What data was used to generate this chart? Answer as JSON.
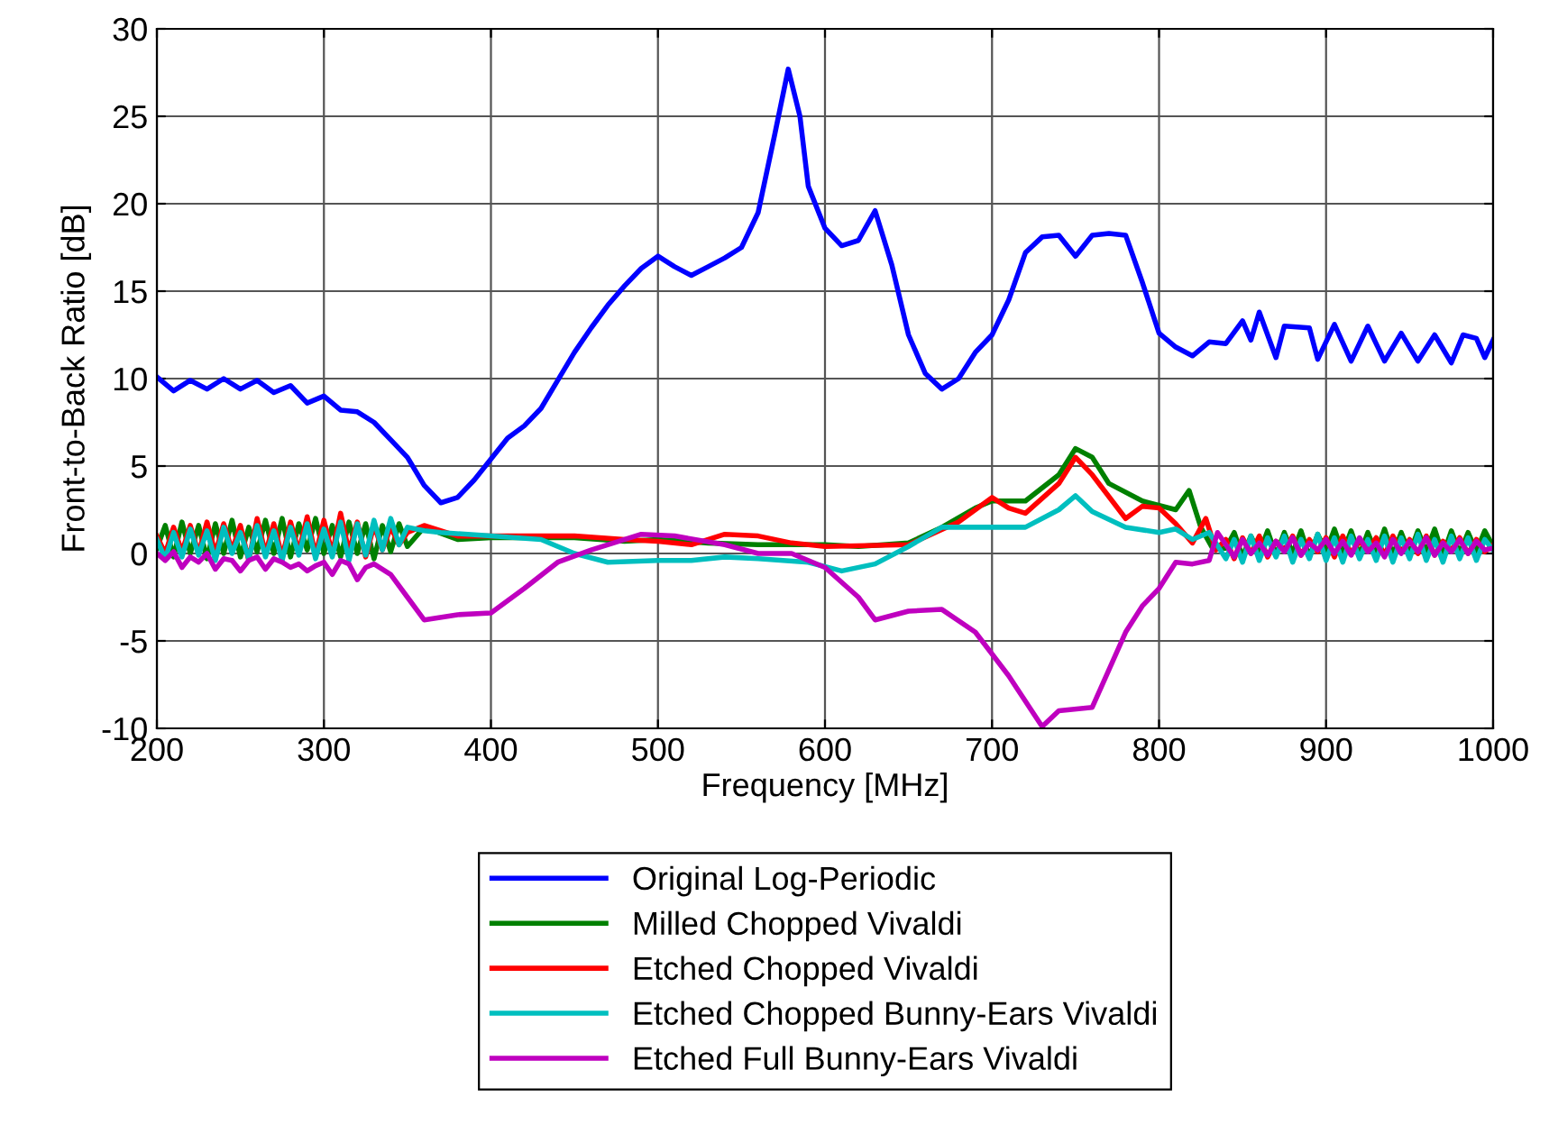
{
  "chart_data": {
    "type": "line",
    "xlabel": "Frequency [MHz]",
    "ylabel": "Front-to-Back Ratio [dB]",
    "xlim": [
      200,
      1000
    ],
    "ylim": [
      -10,
      30
    ],
    "xticks": [
      200,
      300,
      400,
      500,
      600,
      700,
      800,
      900,
      1000
    ],
    "yticks": [
      -10,
      -5,
      0,
      5,
      10,
      15,
      20,
      25,
      30
    ],
    "grid": true,
    "legend": "bottom",
    "line_style": "solid",
    "marker": "none",
    "series": [
      {
        "name": "Original Log-Periodic",
        "color": "#0000ff",
        "x": [
          200,
          210,
          220,
          230,
          240,
          250,
          260,
          270,
          280,
          290,
          300,
          310,
          320,
          330,
          340,
          350,
          360,
          370,
          380,
          390,
          400,
          410,
          420,
          430,
          440,
          450,
          460,
          470,
          480,
          490,
          500,
          510,
          520,
          530,
          540,
          550,
          560,
          570,
          578,
          585,
          590,
          600,
          610,
          620,
          630,
          640,
          650,
          660,
          670,
          680,
          690,
          700,
          710,
          720,
          730,
          740,
          750,
          760,
          770,
          780,
          790,
          800,
          810,
          820,
          830,
          840,
          850,
          855,
          860,
          870,
          875,
          890,
          895,
          905,
          915,
          925,
          935,
          945,
          955,
          965,
          975,
          982,
          990,
          995,
          1000
        ],
        "values": [
          10.1,
          9.3,
          9.9,
          9.4,
          10.0,
          9.4,
          9.9,
          9.2,
          9.6,
          8.6,
          9.0,
          8.2,
          8.1,
          7.5,
          6.5,
          5.5,
          3.9,
          2.9,
          3.2,
          4.2,
          5.4,
          6.6,
          7.3,
          8.3,
          9.9,
          11.5,
          12.9,
          14.2,
          15.3,
          16.3,
          17.0,
          16.4,
          15.9,
          16.4,
          16.9,
          17.5,
          19.5,
          24.0,
          27.7,
          25.0,
          21.0,
          18.6,
          17.6,
          17.9,
          19.6,
          16.5,
          12.5,
          10.3,
          9.4,
          10.0,
          11.5,
          12.5,
          14.5,
          17.2,
          18.1,
          18.2,
          17.0,
          18.2,
          18.3,
          18.2,
          15.5,
          12.6,
          11.8,
          11.3,
          12.1,
          12.0,
          13.3,
          12.2,
          13.8,
          11.2,
          13.0,
          12.9,
          11.1,
          13.1,
          11.0,
          13.0,
          11.0,
          12.6,
          11.0,
          12.5,
          10.9,
          12.5,
          12.3,
          11.2,
          12.2
        ]
      },
      {
        "name": "Milled Chopped Vivaldi",
        "color": "#008000",
        "x": [
          200,
          205,
          210,
          215,
          220,
          225,
          230,
          235,
          240,
          245,
          250,
          255,
          260,
          265,
          270,
          275,
          280,
          285,
          290,
          295,
          300,
          305,
          310,
          315,
          320,
          325,
          330,
          335,
          340,
          345,
          350,
          360,
          380,
          400,
          450,
          480,
          500,
          530,
          560,
          600,
          620,
          650,
          670,
          690,
          700,
          720,
          740,
          750,
          760,
          770,
          790,
          810,
          818,
          825,
          832,
          840,
          845,
          850,
          855,
          860,
          865,
          870,
          875,
          880,
          885,
          890,
          895,
          900,
          905,
          910,
          915,
          920,
          925,
          930,
          935,
          940,
          945,
          950,
          955,
          960,
          965,
          970,
          975,
          980,
          985,
          990,
          995,
          1000
        ],
        "values": [
          0.3,
          1.6,
          -0.2,
          1.8,
          0,
          1.6,
          -0.3,
          1.7,
          0,
          1.9,
          -0.2,
          1.5,
          0.1,
          1.9,
          0,
          2.0,
          -0.2,
          1.7,
          0.2,
          2.0,
          0,
          1.6,
          -0.2,
          1.8,
          0,
          1.7,
          -0.3,
          1.6,
          0.1,
          1.7,
          0.4,
          1.5,
          0.8,
          0.9,
          0.9,
          0.7,
          0.8,
          0.6,
          0.5,
          0.5,
          0.4,
          0.6,
          1.5,
          2.6,
          3.0,
          3.0,
          4.5,
          6.0,
          5.5,
          4.0,
          3.0,
          2.5,
          3.6,
          1.5,
          0.3,
          0.3,
          1.2,
          -0.2,
          1.0,
          0,
          1.3,
          -0.1,
          1.2,
          0,
          1.3,
          -0.2,
          1.1,
          0.1,
          1.4,
          0,
          1.3,
          -0.1,
          1.2,
          0,
          1.4,
          -0.1,
          1.2,
          0,
          1.3,
          0.1,
          1.4,
          -0.1,
          1.3,
          0,
          1.2,
          0.1,
          1.3,
          0.4
        ]
      },
      {
        "name": "Etched Chopped Vivaldi",
        "color": "#ff0000",
        "x": [
          200,
          205,
          210,
          215,
          220,
          225,
          230,
          235,
          240,
          245,
          250,
          255,
          260,
          265,
          270,
          275,
          280,
          285,
          290,
          295,
          300,
          305,
          310,
          315,
          320,
          325,
          330,
          335,
          340,
          345,
          350,
          360,
          380,
          400,
          450,
          480,
          500,
          520,
          540,
          560,
          580,
          600,
          650,
          680,
          700,
          710,
          720,
          740,
          750,
          760,
          780,
          790,
          800,
          810,
          820,
          828,
          834,
          840,
          845,
          850,
          855,
          860,
          865,
          870,
          875,
          880,
          885,
          890,
          895,
          900,
          905,
          910,
          915,
          920,
          925,
          930,
          935,
          940,
          945,
          950,
          955,
          960,
          965,
          970,
          975,
          980,
          985,
          990,
          995,
          1000
        ],
        "values": [
          1.0,
          0,
          1.5,
          0.1,
          1.6,
          0,
          1.8,
          0.0,
          1.7,
          0.2,
          1.6,
          -0.4,
          2.0,
          0,
          1.7,
          -0.2,
          1.8,
          0.1,
          2.1,
          -0.1,
          1.9,
          0,
          2.3,
          0.1,
          1.8,
          -0.2,
          1.6,
          0.2,
          1.5,
          0.5,
          1.2,
          1.6,
          1.0,
          1.0,
          1.0,
          0.8,
          0.7,
          0.5,
          1.1,
          1.0,
          0.6,
          0.4,
          0.5,
          1.8,
          3.2,
          2.6,
          2.3,
          4.0,
          5.5,
          4.5,
          2.0,
          2.7,
          2.6,
          1.7,
          0.6,
          2.0,
          0.2,
          0.8,
          -0.3,
          0.9,
          0,
          1.0,
          -0.2,
          0.7,
          0.2,
          1.0,
          -0.1,
          0.8,
          0.1,
          0.9,
          -0.2,
          1.0,
          0,
          0.7,
          0.2,
          0.9,
          -0.1,
          1.0,
          0.1,
          0.8,
          0,
          1.0,
          -0.1,
          0.7,
          0.2,
          0.9,
          0,
          0.8,
          0.1,
          0.5
        ]
      },
      {
        "name": "Etched Chopped Bunny-Ears Vivaldi",
        "color": "#00bfbf",
        "x": [
          200,
          205,
          210,
          215,
          220,
          225,
          230,
          235,
          240,
          245,
          250,
          255,
          260,
          265,
          270,
          275,
          280,
          285,
          290,
          295,
          300,
          305,
          310,
          315,
          320,
          325,
          330,
          335,
          340,
          345,
          350,
          360,
          370,
          400,
          430,
          450,
          470,
          500,
          520,
          540,
          560,
          590,
          610,
          630,
          650,
          670,
          700,
          720,
          740,
          750,
          760,
          780,
          800,
          810,
          820,
          830,
          840,
          845,
          850,
          855,
          860,
          865,
          870,
          875,
          880,
          885,
          890,
          895,
          900,
          905,
          910,
          915,
          920,
          925,
          930,
          935,
          940,
          945,
          950,
          955,
          960,
          965,
          970,
          975,
          980,
          985,
          990,
          995,
          1000
        ],
        "values": [
          0.8,
          -0.3,
          1.2,
          -0.2,
          1.4,
          -0.1,
          1.3,
          -0.4,
          1.5,
          0,
          1.2,
          -0.3,
          1.6,
          -0.2,
          1.3,
          -0.4,
          1.5,
          -0.1,
          1.7,
          -0.3,
          1.4,
          -0.2,
          1.8,
          -0.4,
          1.7,
          -0.1,
          1.9,
          0.2,
          2.0,
          0.5,
          1.5,
          1.3,
          1.2,
          1.0,
          0.8,
          0.0,
          -0.5,
          -0.4,
          -0.4,
          -0.2,
          -0.3,
          -0.5,
          -1.0,
          -0.6,
          0.4,
          1.5,
          1.5,
          1.5,
          2.5,
          3.3,
          2.4,
          1.5,
          1.2,
          1.4,
          0.8,
          1.2,
          -0.3,
          0.8,
          -0.5,
          1.0,
          -0.4,
          0.9,
          -0.2,
          1.0,
          -0.5,
          0.8,
          -0.3,
          1.1,
          -0.4,
          0.9,
          -0.5,
          1.0,
          -0.3,
          0.8,
          -0.4,
          1.0,
          -0.5,
          0.9,
          -0.3,
          1.1,
          -0.4,
          0.8,
          -0.5,
          1.0,
          -0.3,
          0.9,
          -0.4,
          0.8,
          0.2
        ]
      },
      {
        "name": "Etched Full Bunny-Ears Vivaldi",
        "color": "#bf00bf",
        "x": [
          200,
          205,
          210,
          215,
          220,
          225,
          230,
          235,
          240,
          245,
          250,
          255,
          260,
          265,
          270,
          275,
          280,
          285,
          290,
          295,
          300,
          305,
          310,
          315,
          320,
          325,
          330,
          340,
          350,
          360,
          380,
          400,
          420,
          440,
          460,
          490,
          510,
          540,
          560,
          580,
          600,
          620,
          630,
          650,
          670,
          690,
          710,
          730,
          740,
          760,
          780,
          790,
          800,
          810,
          820,
          830,
          835,
          840,
          845,
          850,
          855,
          860,
          865,
          870,
          875,
          880,
          885,
          890,
          895,
          900,
          905,
          910,
          915,
          920,
          925,
          930,
          935,
          940,
          945,
          950,
          955,
          960,
          965,
          970,
          975,
          980,
          985,
          990,
          995,
          1000
        ],
        "values": [
          0,
          -0.4,
          0.1,
          -0.8,
          -0.2,
          -0.5,
          0,
          -0.9,
          -0.3,
          -0.4,
          -1.0,
          -0.4,
          -0.2,
          -0.9,
          -0.3,
          -0.5,
          -0.8,
          -0.6,
          -1.0,
          -0.7,
          -0.5,
          -1.2,
          -0.4,
          -0.6,
          -1.5,
          -0.8,
          -0.6,
          -1.2,
          -2.5,
          -3.8,
          -3.5,
          -3.4,
          -2.0,
          -0.5,
          0.2,
          1.1,
          1.0,
          0.5,
          0.0,
          0.0,
          -0.8,
          -2.5,
          -3.8,
          -3.3,
          -3.2,
          -4.5,
          -7.0,
          -9.9,
          -9.0,
          -8.8,
          -4.5,
          -3.0,
          -2.0,
          -0.5,
          -0.6,
          -0.4,
          1.2,
          0.5,
          -0.2,
          0.8,
          0,
          0.6,
          -0.1,
          0.7,
          0.1,
          0.9,
          -0.1,
          0.6,
          0.2,
          0.8,
          0,
          0.7,
          -0.1,
          0.9,
          0.1,
          0.6,
          -0.2,
          0.8,
          0,
          0.7,
          0.1,
          0.9,
          -0.1,
          0.6,
          0.1,
          0.8,
          0,
          0.7,
          0.2,
          0.3
        ]
      }
    ]
  }
}
